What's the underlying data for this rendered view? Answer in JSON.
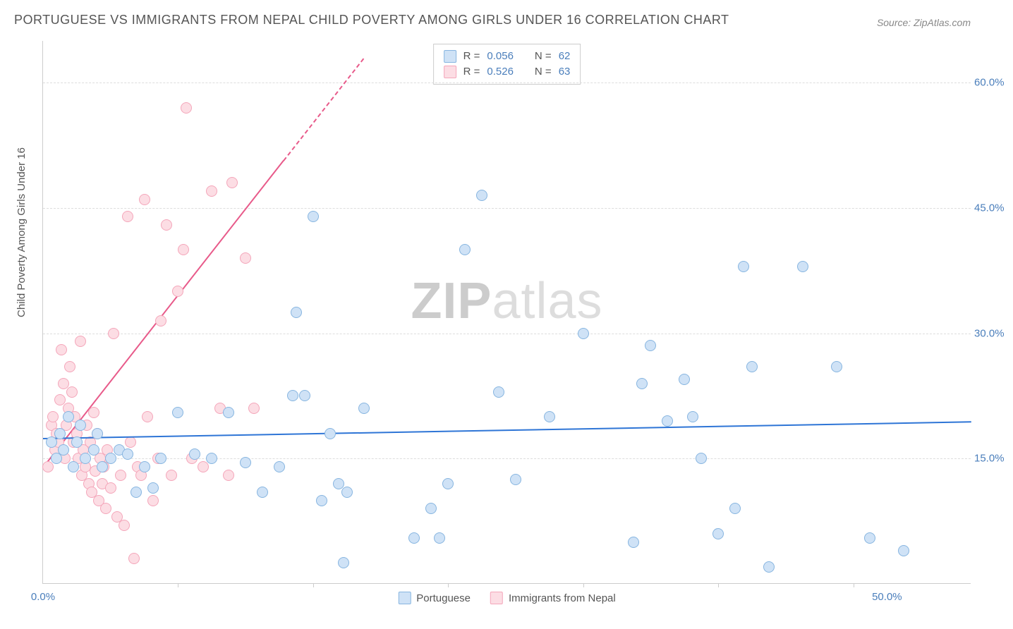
{
  "title": "PORTUGUESE VS IMMIGRANTS FROM NEPAL CHILD POVERTY AMONG GIRLS UNDER 16 CORRELATION CHART",
  "source": "Source: ZipAtlas.com",
  "y_axis_label": "Child Poverty Among Girls Under 16",
  "watermark_bold": "ZIP",
  "watermark_rest": "atlas",
  "chart": {
    "type": "scatter",
    "background_color": "#ffffff",
    "grid_color": "#dddddd",
    "axis_color": "#cccccc",
    "tick_label_color": "#4a7ebb",
    "tick_fontsize": 15,
    "title_fontsize": 18,
    "xlim": [
      0,
      55
    ],
    "ylim": [
      0,
      65
    ],
    "x_ticks": [
      {
        "pos": 0,
        "label": "0.0%"
      },
      {
        "pos": 50,
        "label": "50.0%"
      }
    ],
    "x_tick_marks": [
      8,
      16,
      24,
      32,
      40,
      48
    ],
    "y_ticks": [
      {
        "pos": 15,
        "label": "15.0%"
      },
      {
        "pos": 30,
        "label": "30.0%"
      },
      {
        "pos": 45,
        "label": "45.0%"
      },
      {
        "pos": 60,
        "label": "60.0%"
      }
    ],
    "marker_radius": 8,
    "marker_border_width": 1,
    "trend_line_width": 2
  },
  "series": [
    {
      "name": "Portuguese",
      "fill_color": "#cfe2f6",
      "stroke_color": "#87b5e0",
      "trend_color": "#2e75d6",
      "legend_R": "0.056",
      "legend_N": "62",
      "trend": {
        "x1": 0,
        "y1": 17.5,
        "x2": 55,
        "y2": 19.5,
        "dashed": false
      },
      "points": [
        [
          0.5,
          17
        ],
        [
          0.8,
          15
        ],
        [
          1,
          18
        ],
        [
          1.2,
          16
        ],
        [
          1.5,
          20
        ],
        [
          1.8,
          14
        ],
        [
          2,
          17
        ],
        [
          2.2,
          19
        ],
        [
          2.5,
          15
        ],
        [
          3,
          16
        ],
        [
          3.2,
          18
        ],
        [
          3.5,
          14
        ],
        [
          4,
          15
        ],
        [
          4.5,
          16
        ],
        [
          5,
          15.5
        ],
        [
          5.5,
          11
        ],
        [
          6,
          14
        ],
        [
          6.5,
          11.5
        ],
        [
          7,
          15
        ],
        [
          8,
          20.5
        ],
        [
          9,
          15.5
        ],
        [
          10,
          15
        ],
        [
          11,
          20.5
        ],
        [
          12,
          14.5
        ],
        [
          13,
          11
        ],
        [
          14,
          14
        ],
        [
          14.8,
          22.5
        ],
        [
          15,
          32.5
        ],
        [
          15.5,
          22.5
        ],
        [
          16,
          44
        ],
        [
          16.5,
          10
        ],
        [
          17,
          18
        ],
        [
          17.5,
          12
        ],
        [
          17.8,
          2.5
        ],
        [
          18,
          11
        ],
        [
          19,
          21
        ],
        [
          22,
          5.5
        ],
        [
          23,
          9
        ],
        [
          23.5,
          5.5
        ],
        [
          24,
          12
        ],
        [
          25,
          40
        ],
        [
          26,
          46.5
        ],
        [
          27,
          23
        ],
        [
          28,
          12.5
        ],
        [
          30,
          20
        ],
        [
          32,
          30
        ],
        [
          35,
          5
        ],
        [
          35.5,
          24
        ],
        [
          36,
          28.5
        ],
        [
          37,
          19.5
        ],
        [
          38,
          24.5
        ],
        [
          38.5,
          20
        ],
        [
          39,
          15
        ],
        [
          40,
          6
        ],
        [
          41,
          9
        ],
        [
          41.5,
          38
        ],
        [
          42,
          26
        ],
        [
          43,
          2
        ],
        [
          45,
          38
        ],
        [
          47,
          26
        ],
        [
          49,
          5.5
        ],
        [
          51,
          4
        ]
      ]
    },
    {
      "name": "Immigrants from Nepal",
      "fill_color": "#fcdde4",
      "stroke_color": "#f4a6ba",
      "trend_color": "#e85a8a",
      "legend_R": "0.526",
      "legend_N": "63",
      "trend": {
        "x1": 0,
        "y1": 14,
        "x2": 19,
        "y2": 63,
        "dashed_split": 0.75
      },
      "points": [
        [
          0.3,
          14
        ],
        [
          0.5,
          19
        ],
        [
          0.6,
          20
        ],
        [
          0.7,
          16
        ],
        [
          0.8,
          18
        ],
        [
          0.9,
          17
        ],
        [
          1,
          22
        ],
        [
          1.1,
          28
        ],
        [
          1.2,
          24
        ],
        [
          1.3,
          15
        ],
        [
          1.4,
          19
        ],
        [
          1.5,
          21
        ],
        [
          1.6,
          26
        ],
        [
          1.7,
          23
        ],
        [
          1.8,
          17
        ],
        [
          1.9,
          20
        ],
        [
          2,
          18
        ],
        [
          2.1,
          15
        ],
        [
          2.2,
          29
        ],
        [
          2.3,
          13
        ],
        [
          2.4,
          16
        ],
        [
          2.5,
          14
        ],
        [
          2.6,
          19
        ],
        [
          2.7,
          12
        ],
        [
          2.8,
          17
        ],
        [
          2.9,
          11
        ],
        [
          3,
          20.5
        ],
        [
          3.1,
          13.5
        ],
        [
          3.2,
          18
        ],
        [
          3.3,
          10
        ],
        [
          3.4,
          15
        ],
        [
          3.5,
          12
        ],
        [
          3.6,
          14
        ],
        [
          3.7,
          9
        ],
        [
          3.8,
          16
        ],
        [
          4,
          11.5
        ],
        [
          4.2,
          30
        ],
        [
          4.4,
          8
        ],
        [
          4.6,
          13
        ],
        [
          4.8,
          7
        ],
        [
          5,
          44
        ],
        [
          5.2,
          17
        ],
        [
          5.4,
          3
        ],
        [
          5.6,
          14
        ],
        [
          5.8,
          13
        ],
        [
          6,
          46
        ],
        [
          6.2,
          20
        ],
        [
          6.5,
          10
        ],
        [
          6.8,
          15
        ],
        [
          7,
          31.5
        ],
        [
          7.3,
          43
        ],
        [
          7.6,
          13
        ],
        [
          8,
          35
        ],
        [
          8.3,
          40
        ],
        [
          8.5,
          57
        ],
        [
          8.8,
          15
        ],
        [
          9.5,
          14
        ],
        [
          10,
          47
        ],
        [
          10.5,
          21
        ],
        [
          11,
          13
        ],
        [
          11.2,
          48
        ],
        [
          12,
          39
        ],
        [
          12.5,
          21
        ]
      ]
    }
  ],
  "legend_labels": {
    "R": "R =",
    "N": "N ="
  }
}
